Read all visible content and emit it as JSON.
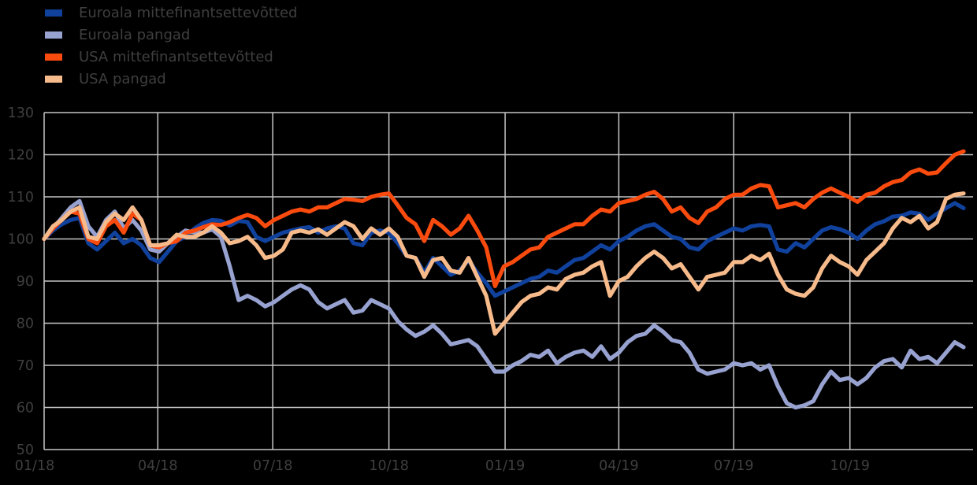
{
  "colors": {
    "background": "#000000",
    "grid": "#c6c6c6",
    "axis_text": "#3f3f3f"
  },
  "chart_data": {
    "type": "line",
    "title": "",
    "index_base": "100 = 01/2018",
    "grid": true,
    "legend_position": "upper-left",
    "x_axis": {
      "unit": "days since 2018-01-01",
      "tick_labels": [
        "01/18",
        "04/18",
        "07/18",
        "10/18",
        "01/19",
        "04/19",
        "07/19",
        "10/19"
      ],
      "tick_days": [
        0,
        90,
        181,
        273,
        365,
        455,
        546,
        638
      ],
      "range_days": [
        0,
        735
      ]
    },
    "y_axis": {
      "tick_labels": [
        "130",
        "120",
        "110",
        "100",
        "90",
        "80",
        "70",
        "60",
        "50"
      ],
      "tick_values": [
        130,
        120,
        110,
        100,
        90,
        80,
        70,
        60,
        50
      ],
      "range": [
        50,
        130
      ]
    },
    "sampling": {
      "start_day": 0,
      "step_days": 7
    },
    "series": [
      {
        "name": "Euroala mittefinantsettevõtted",
        "color": "#10419c",
        "values": [
          100,
          102,
          103.5,
          104.5,
          105,
          99,
          97.5,
          99.5,
          101.5,
          99,
          100,
          98.5,
          95.5,
          94.5,
          97,
          99.5,
          100.5,
          102.5,
          103.8,
          104.5,
          104.3,
          103.2,
          104.3,
          104,
          100.5,
          99.5,
          100.5,
          101.5,
          102,
          102.5,
          102.8,
          101.5,
          102.5,
          103,
          102.5,
          99,
          98.5,
          101.5,
          102,
          101.5,
          99,
          96,
          95.5,
          92,
          95.5,
          93.5,
          91.5,
          92.5,
          95,
          92,
          89.5,
          86.5,
          87.5,
          88.5,
          89.5,
          90.5,
          91,
          92.5,
          92,
          93.5,
          95,
          95.5,
          97,
          98.5,
          97.5,
          99.5,
          100.5,
          102,
          103,
          103.5,
          102,
          100.5,
          100,
          98,
          97.5,
          99.5,
          100.5,
          101.5,
          102.5,
          102,
          103,
          103.3,
          103,
          97.5,
          97,
          99,
          98,
          100,
          102,
          102.8,
          102.3,
          101.5,
          100,
          102,
          103.5,
          104.2,
          105.3,
          105.5,
          106.3,
          106,
          104.5,
          106,
          107.3,
          108.5,
          107.3
        ]
      },
      {
        "name": "Euroala pangad",
        "color": "#98a2d0",
        "values": [
          100,
          102.5,
          105,
          107.5,
          109,
          103,
          100.5,
          104.5,
          106.5,
          102.5,
          104.5,
          102,
          97.5,
          97,
          99,
          100.5,
          102,
          101.5,
          101.5,
          102.3,
          100.5,
          93.5,
          85.5,
          86.5,
          85.5,
          84,
          85,
          86.5,
          88,
          89,
          88,
          85,
          83.5,
          84.5,
          85.5,
          82.5,
          83,
          85.5,
          84.5,
          83.5,
          80.5,
          78.5,
          77,
          78,
          79.5,
          77.5,
          75,
          75.5,
          76,
          74.5,
          71.5,
          68.5,
          68.5,
          70,
          71,
          72.5,
          72,
          73.5,
          70.5,
          72,
          73,
          73.5,
          72,
          74.5,
          71.5,
          73,
          75.5,
          77,
          77.5,
          79.5,
          78,
          76,
          75.5,
          73,
          69,
          68,
          68.5,
          69,
          70.5,
          70,
          70.5,
          69,
          70,
          65,
          61,
          60,
          60.5,
          61.5,
          65.5,
          68.5,
          66.5,
          67,
          65.5,
          67,
          69.5,
          71,
          71.5,
          69.5,
          73.5,
          71.5,
          72,
          70.5,
          73,
          75.5,
          74.3
        ]
      },
      {
        "name": "USA mittefinantsettevõtted",
        "color": "#fa4b0f",
        "values": [
          100,
          102.5,
          104.5,
          106.5,
          106,
          100,
          99,
          103,
          104.5,
          101.5,
          106,
          104.5,
          98.5,
          98,
          99,
          99.5,
          101.5,
          102,
          102.8,
          103.5,
          103.3,
          104,
          105,
          105.7,
          105,
          103,
          104.5,
          105.5,
          106.5,
          107,
          106.5,
          107.5,
          107.5,
          108.5,
          109.5,
          109.3,
          109,
          110,
          110.5,
          110.8,
          108,
          105,
          103.5,
          99.5,
          104.5,
          103,
          101,
          102.5,
          105.5,
          102,
          98,
          88.8,
          93.5,
          94.5,
          96,
          97.5,
          98,
          100.5,
          101.5,
          102.5,
          103.5,
          103.5,
          105.5,
          107,
          106.5,
          108.5,
          109,
          109.5,
          110.5,
          111.2,
          109.5,
          106.5,
          107.5,
          105,
          103.8,
          106.5,
          107.5,
          109.5,
          110.5,
          110.5,
          112,
          112.8,
          112.5,
          107.5,
          108,
          108.5,
          107.5,
          109.5,
          111,
          112,
          111,
          110,
          108.8,
          110.5,
          111,
          112.5,
          113.5,
          114,
          115.8,
          116.5,
          115.5,
          115.8,
          118,
          120,
          120.8
        ]
      },
      {
        "name": "USA pangad",
        "color": "#f6ba8b",
        "values": [
          100,
          103,
          104.5,
          106.5,
          107.5,
          100.5,
          100,
          104,
          106,
          104.5,
          107.5,
          104.5,
          98.5,
          98.5,
          99,
          101,
          100.5,
          100.5,
          101.5,
          103,
          101.5,
          99,
          99.5,
          100.5,
          98.5,
          95.5,
          96,
          97.5,
          101.5,
          102,
          101.5,
          102.3,
          101,
          102.5,
          104,
          103,
          100,
          102.5,
          101,
          102.5,
          100.5,
          96,
          95.5,
          91,
          95,
          95.5,
          92.5,
          92,
          95.5,
          91,
          86.5,
          77.5,
          80,
          82.5,
          85,
          86.5,
          87,
          88.5,
          88,
          90.5,
          91.5,
          92,
          93.5,
          94.5,
          86.5,
          90,
          91,
          93.5,
          95.5,
          97,
          95.5,
          93,
          94,
          91,
          88,
          91,
          91.5,
          92,
          94.5,
          94.5,
          96,
          95,
          96.5,
          91.5,
          88,
          87,
          86.5,
          88.5,
          93,
          96,
          94.5,
          93.5,
          91.5,
          95,
          97,
          99,
          102.5,
          105,
          104,
          105.5,
          102.5,
          104,
          109.5,
          110.5,
          110.8
        ]
      }
    ]
  }
}
